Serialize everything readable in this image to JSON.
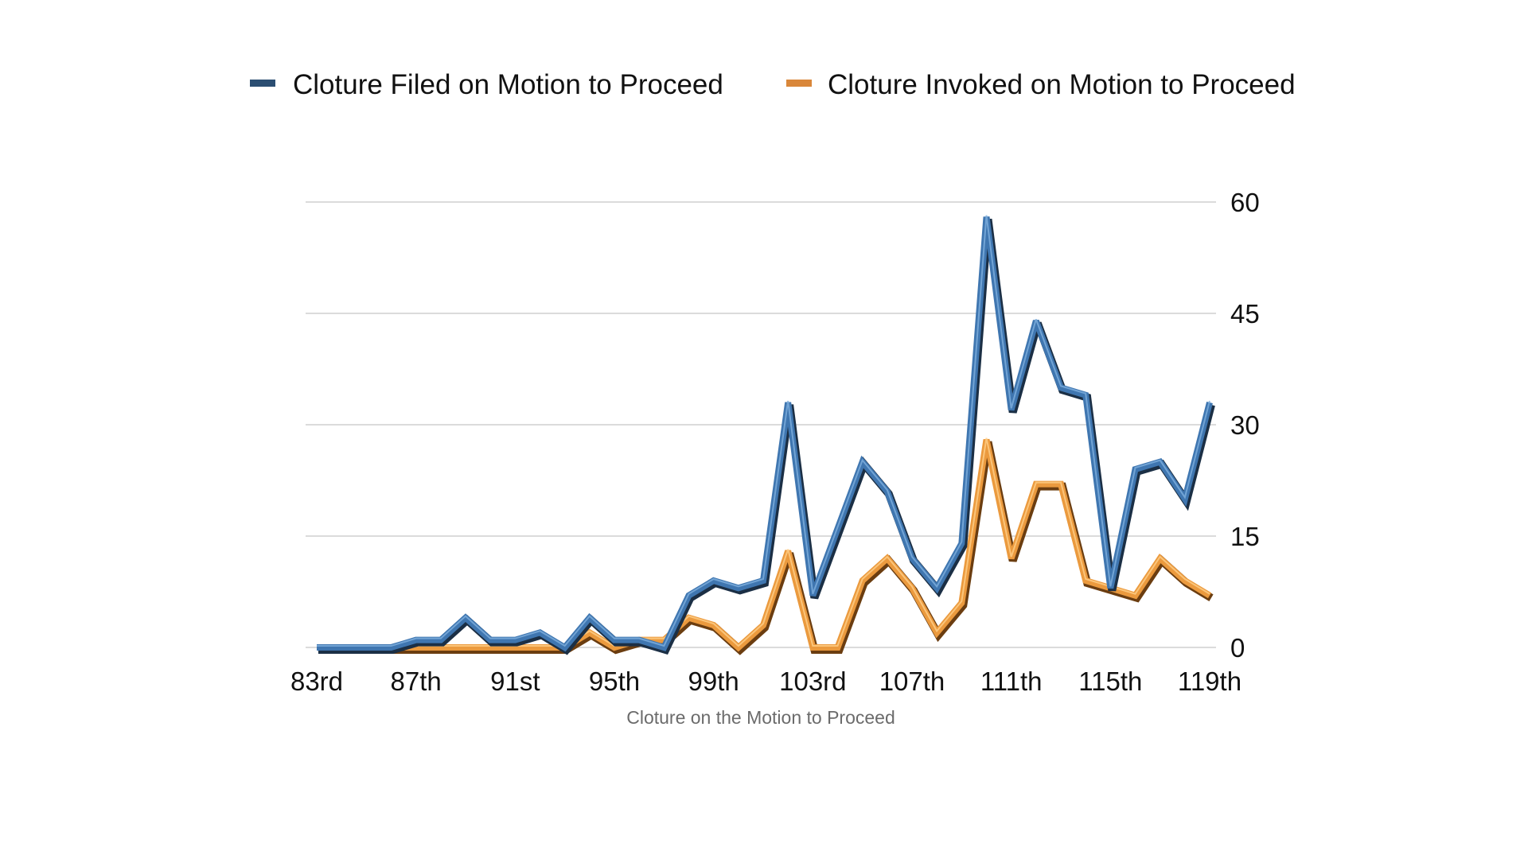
{
  "chart_data": {
    "type": "line",
    "title": "",
    "xlabel": "Cloture on the Motion to Proceed",
    "ylabel": "",
    "ylim": [
      0,
      60
    ],
    "yticks": [
      "0",
      "15",
      "30",
      "45",
      "60"
    ],
    "grid": true,
    "legend_position": "top",
    "categories": [
      "83rd",
      "84th",
      "85th",
      "86th",
      "87th",
      "88th",
      "89th",
      "90th",
      "91st",
      "92nd",
      "93rd",
      "94th",
      "95th",
      "96th",
      "97th",
      "98th",
      "99th",
      "100th",
      "101st",
      "102nd",
      "103rd",
      "104th",
      "105th",
      "106th",
      "107th",
      "108th",
      "109th",
      "110th",
      "111th",
      "112th",
      "113th",
      "114th",
      "115th",
      "116th",
      "117th",
      "118th",
      "119th"
    ],
    "x_tick_labels": [
      "83rd",
      "87th",
      "91st",
      "95th",
      "99th",
      "103rd",
      "107th",
      "111th",
      "115th",
      "119th"
    ],
    "series": [
      {
        "name": "Cloture Filed on Motion to Proceed",
        "color": "#3a6fa8",
        "values": [
          0,
          0,
          0,
          0,
          1,
          1,
          4,
          1,
          1,
          2,
          0,
          4,
          1,
          1,
          0,
          7,
          9,
          8,
          9,
          33,
          7,
          16,
          25,
          21,
          12,
          8,
          14,
          58,
          32,
          44,
          35,
          34,
          8,
          24,
          25,
          20,
          33
        ]
      },
      {
        "name": "Cloture Invoked on Motion to Proceed",
        "color": "#e7963c",
        "values": [
          0,
          0,
          0,
          0,
          0,
          0,
          0,
          0,
          0,
          0,
          0,
          2,
          0,
          1,
          1,
          4,
          3,
          0,
          3,
          13,
          0,
          0,
          9,
          12,
          8,
          2,
          6,
          28,
          12,
          22,
          22,
          9,
          8,
          7,
          12,
          9,
          7
        ]
      }
    ]
  }
}
